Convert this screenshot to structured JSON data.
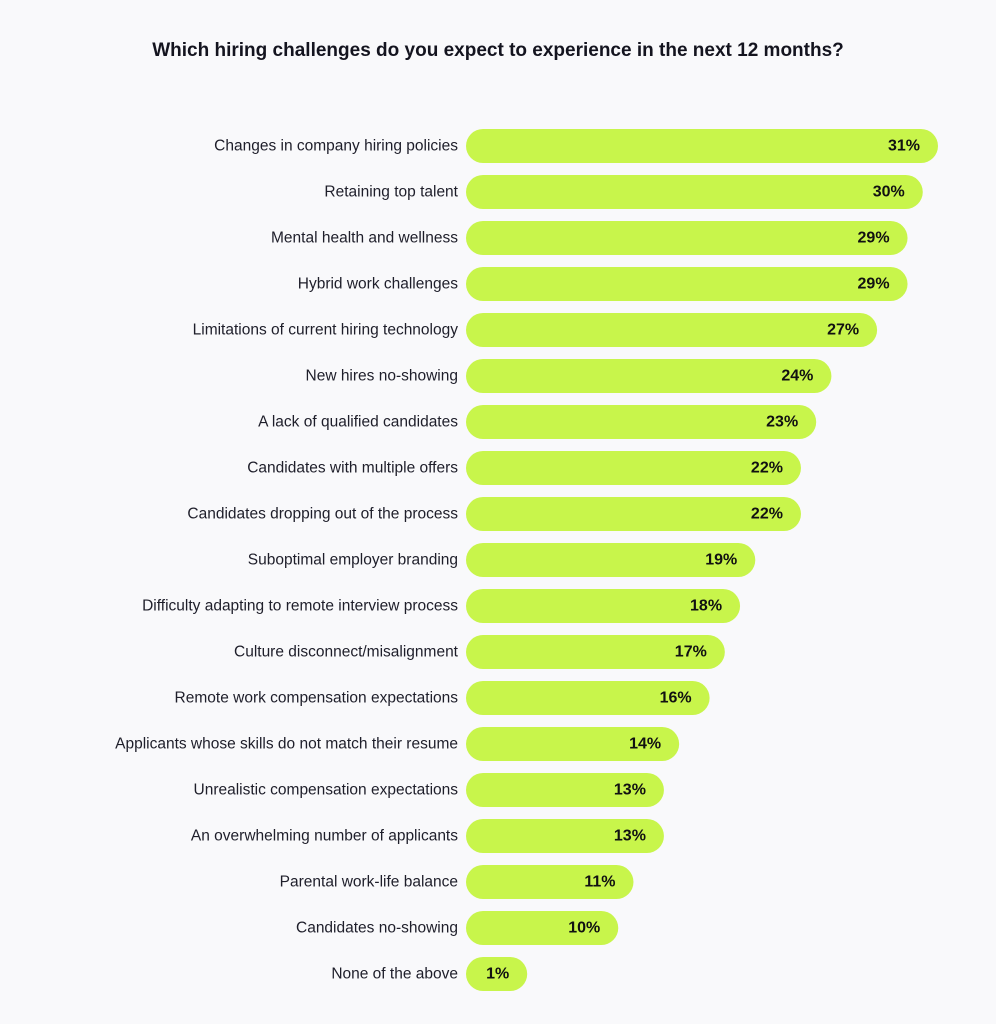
{
  "chart_data": {
    "type": "bar",
    "orientation": "horizontal",
    "title": "Which hiring challenges do you expect to experience in the next 12 months?",
    "categories": [
      "Changes in company hiring policies",
      "Retaining top talent",
      "Mental health and wellness",
      "Hybrid work challenges",
      "Limitations of current hiring technology",
      "New hires no-showing",
      "A lack of qualified candidates",
      "Candidates with multiple offers",
      "Candidates dropping out of the process",
      "Suboptimal employer branding",
      "Difficulty adapting to remote interview process",
      "Culture disconnect/misalignment",
      "Remote work compensation expectations",
      "Applicants whose skills do not match their resume",
      "Unrealistic compensation expectations",
      "An overwhelming number of applicants",
      "Parental work-life balance",
      "Candidates no-showing",
      "None of the above"
    ],
    "values": [
      31,
      30,
      29,
      29,
      27,
      24,
      23,
      22,
      22,
      19,
      18,
      17,
      16,
      14,
      13,
      13,
      11,
      10,
      1
    ],
    "value_labels": [
      "31%",
      "30%",
      "29%",
      "29%",
      "27%",
      "24%",
      "23%",
      "22%",
      "22%",
      "19%",
      "18%",
      "17%",
      "16%",
      "14%",
      "13%",
      "13%",
      "11%",
      "10%",
      "1%"
    ],
    "xlabel": "",
    "ylabel": "",
    "unit": "%",
    "xlim": [
      0,
      31
    ],
    "grid": false,
    "bar_color": "#c8f54b"
  }
}
